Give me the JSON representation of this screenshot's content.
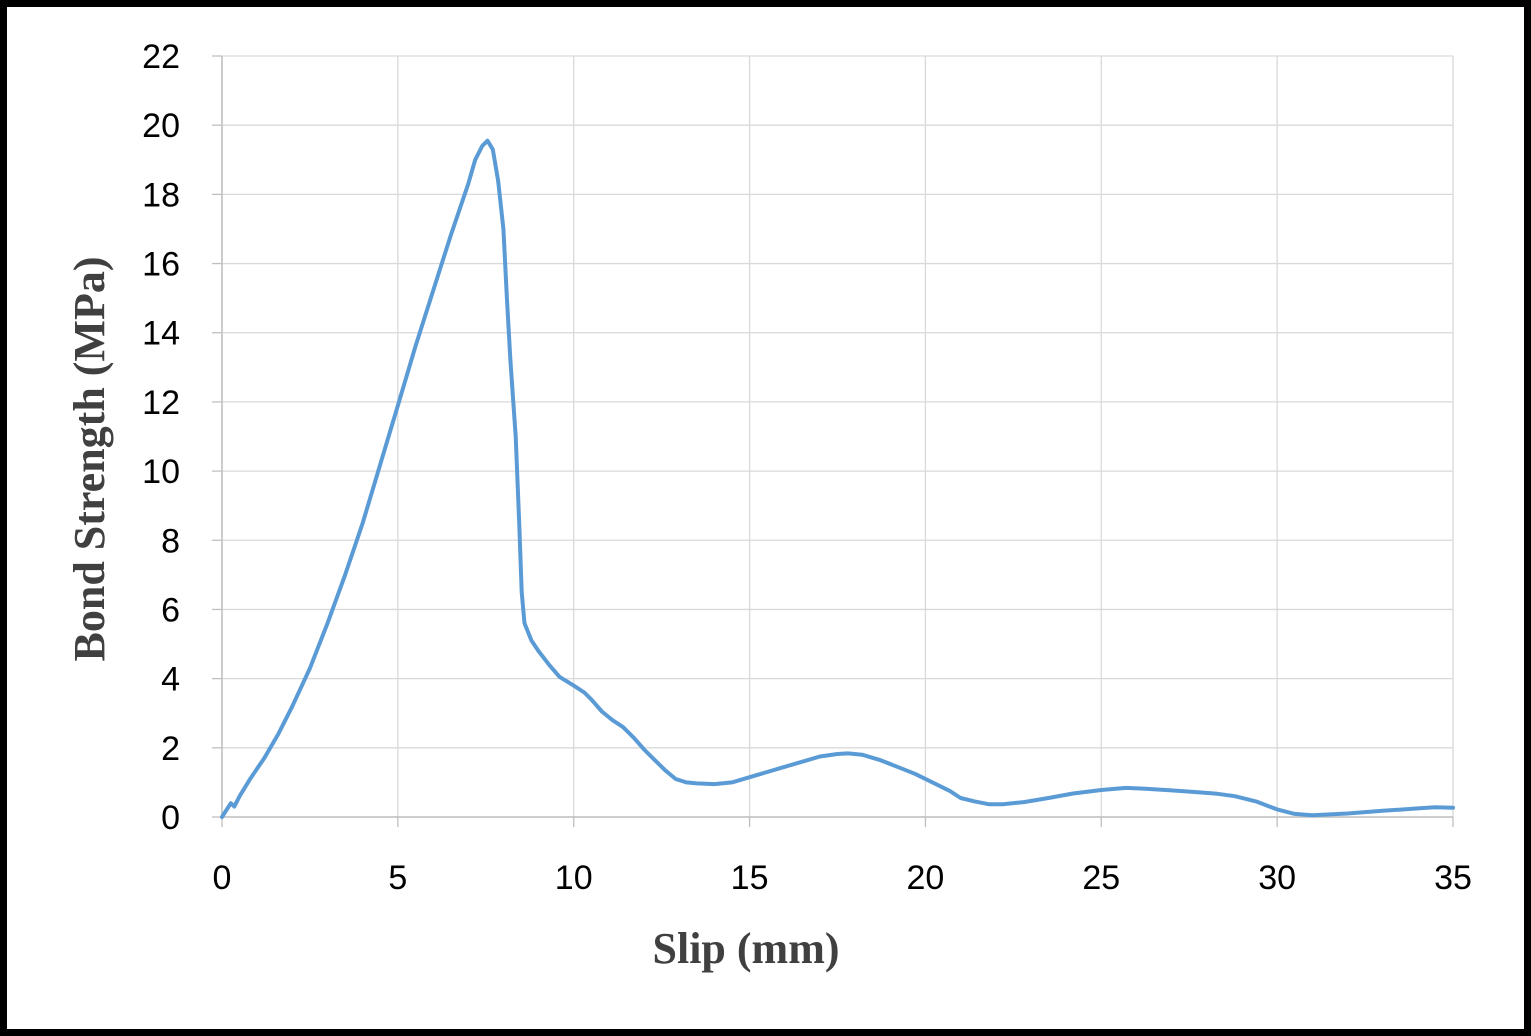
{
  "chart_data": {
    "type": "line",
    "title": "",
    "xlabel": "Slip (mm)",
    "ylabel": "Bond Strength (MPa)",
    "xlim": [
      0,
      35
    ],
    "ylim": [
      0,
      22
    ],
    "xticks": [
      0,
      5,
      10,
      15,
      20,
      25,
      30,
      35
    ],
    "yticks": [
      0,
      2,
      4,
      6,
      8,
      10,
      12,
      14,
      16,
      18,
      20,
      22
    ],
    "grid": true,
    "legend": "none",
    "series": [
      {
        "color": "#5B9BD5",
        "points": [
          [
            0,
            0
          ],
          [
            0.25,
            0.4
          ],
          [
            0.35,
            0.3
          ],
          [
            0.5,
            0.6
          ],
          [
            0.8,
            1.1
          ],
          [
            1.2,
            1.7
          ],
          [
            1.6,
            2.4
          ],
          [
            2.0,
            3.2
          ],
          [
            2.5,
            4.3
          ],
          [
            3.0,
            5.6
          ],
          [
            3.5,
            7.0
          ],
          [
            4.0,
            8.5
          ],
          [
            4.5,
            10.2
          ],
          [
            5.0,
            11.9
          ],
          [
            5.5,
            13.6
          ],
          [
            6.0,
            15.2
          ],
          [
            6.5,
            16.8
          ],
          [
            7.0,
            18.3
          ],
          [
            7.2,
            19.0
          ],
          [
            7.4,
            19.4
          ],
          [
            7.55,
            19.55
          ],
          [
            7.7,
            19.3
          ],
          [
            7.85,
            18.4
          ],
          [
            8.0,
            17.0
          ],
          [
            8.1,
            15.0
          ],
          [
            8.2,
            13.2
          ],
          [
            8.35,
            11.0
          ],
          [
            8.45,
            8.5
          ],
          [
            8.52,
            6.5
          ],
          [
            8.6,
            5.6
          ],
          [
            8.8,
            5.1
          ],
          [
            9.0,
            4.8
          ],
          [
            9.3,
            4.4
          ],
          [
            9.6,
            4.05
          ],
          [
            10.0,
            3.8
          ],
          [
            10.3,
            3.6
          ],
          [
            10.5,
            3.4
          ],
          [
            10.8,
            3.05
          ],
          [
            11.1,
            2.8
          ],
          [
            11.4,
            2.6
          ],
          [
            11.7,
            2.3
          ],
          [
            12.0,
            1.95
          ],
          [
            12.3,
            1.65
          ],
          [
            12.6,
            1.35
          ],
          [
            12.9,
            1.1
          ],
          [
            13.2,
            1.0
          ],
          [
            13.5,
            0.97
          ],
          [
            14.0,
            0.95
          ],
          [
            14.5,
            1.0
          ],
          [
            15.0,
            1.15
          ],
          [
            15.5,
            1.3
          ],
          [
            16.0,
            1.45
          ],
          [
            16.5,
            1.6
          ],
          [
            17.0,
            1.75
          ],
          [
            17.5,
            1.82
          ],
          [
            17.8,
            1.84
          ],
          [
            18.2,
            1.8
          ],
          [
            18.7,
            1.65
          ],
          [
            19.2,
            1.45
          ],
          [
            19.7,
            1.25
          ],
          [
            20.2,
            1.0
          ],
          [
            20.7,
            0.75
          ],
          [
            21.0,
            0.55
          ],
          [
            21.4,
            0.45
          ],
          [
            21.8,
            0.37
          ],
          [
            22.2,
            0.37
          ],
          [
            22.8,
            0.43
          ],
          [
            23.5,
            0.55
          ],
          [
            24.2,
            0.68
          ],
          [
            25.0,
            0.78
          ],
          [
            25.7,
            0.84
          ],
          [
            26.2,
            0.82
          ],
          [
            27.0,
            0.77
          ],
          [
            27.7,
            0.72
          ],
          [
            28.3,
            0.67
          ],
          [
            28.8,
            0.6
          ],
          [
            29.4,
            0.45
          ],
          [
            30.0,
            0.22
          ],
          [
            30.5,
            0.09
          ],
          [
            31.0,
            0.05
          ],
          [
            32.0,
            0.1
          ],
          [
            33.0,
            0.18
          ],
          [
            34.0,
            0.25
          ],
          [
            34.5,
            0.28
          ],
          [
            35.0,
            0.27
          ]
        ]
      }
    ]
  }
}
